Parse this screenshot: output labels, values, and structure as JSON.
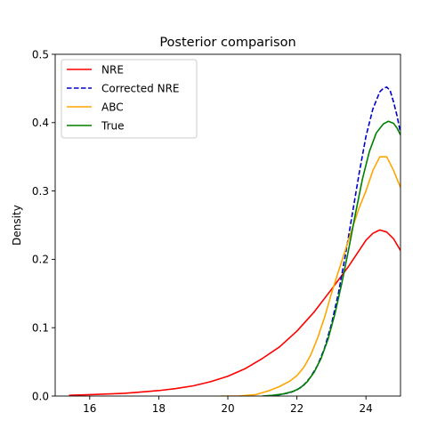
{
  "chart_data": {
    "type": "line",
    "title": "Posterior comparison",
    "xlabel": "",
    "ylabel": "Density",
    "xlim": [
      15.0,
      25.0
    ],
    "ylim": [
      0.0,
      0.5
    ],
    "xticks": [
      16,
      18,
      20,
      22,
      24
    ],
    "yticks": [
      0.0,
      0.1,
      0.2,
      0.3,
      0.4,
      0.5
    ],
    "grid": false,
    "legend_position": "top-left",
    "series": [
      {
        "name": "NRE",
        "color": "#ff0000",
        "style": "solid",
        "x": [
          15.4,
          16.0,
          16.5,
          17.0,
          17.5,
          18.0,
          18.5,
          19.0,
          19.5,
          20.0,
          20.5,
          21.0,
          21.5,
          22.0,
          22.5,
          23.0,
          23.5,
          24.0,
          24.2,
          24.4,
          24.6,
          24.8,
          25.0
        ],
        "y": [
          0.001,
          0.002,
          0.003,
          0.004,
          0.006,
          0.008,
          0.011,
          0.015,
          0.021,
          0.029,
          0.04,
          0.055,
          0.072,
          0.095,
          0.123,
          0.156,
          0.19,
          0.228,
          0.238,
          0.243,
          0.24,
          0.23,
          0.213
        ]
      },
      {
        "name": "Corrected NRE",
        "color": "#0000cc",
        "style": "dashed",
        "x": [
          21.2,
          21.5,
          21.8,
          22.0,
          22.2,
          22.4,
          22.6,
          22.8,
          23.0,
          23.2,
          23.4,
          23.6,
          23.8,
          24.0,
          24.2,
          24.4,
          24.5,
          24.6,
          24.7,
          24.8,
          24.9,
          25.0
        ],
        "y": [
          0.0,
          0.002,
          0.005,
          0.009,
          0.016,
          0.028,
          0.045,
          0.07,
          0.105,
          0.15,
          0.205,
          0.265,
          0.325,
          0.38,
          0.42,
          0.445,
          0.45,
          0.452,
          0.447,
          0.43,
          0.41,
          0.385
        ]
      },
      {
        "name": "ABC",
        "color": "#ffa500",
        "style": "solid",
        "x": [
          19.8,
          20.3,
          20.8,
          21.2,
          21.5,
          21.8,
          22.0,
          22.2,
          22.4,
          22.6,
          22.8,
          23.0,
          23.2,
          23.4,
          23.6,
          23.8,
          24.0,
          24.2,
          24.4,
          24.6,
          24.8,
          25.0
        ],
        "y": [
          0.0,
          0.0,
          0.002,
          0.008,
          0.014,
          0.022,
          0.03,
          0.042,
          0.06,
          0.085,
          0.115,
          0.15,
          0.182,
          0.213,
          0.245,
          0.275,
          0.3,
          0.33,
          0.35,
          0.35,
          0.33,
          0.305
        ]
      },
      {
        "name": "True",
        "color": "#008000",
        "style": "solid",
        "x": [
          21.0,
          21.3,
          21.6,
          21.9,
          22.1,
          22.3,
          22.5,
          22.7,
          22.9,
          23.1,
          23.3,
          23.5,
          23.7,
          23.9,
          24.1,
          24.3,
          24.5,
          24.65,
          24.8,
          24.9,
          25.0
        ],
        "y": [
          0.0,
          0.001,
          0.003,
          0.007,
          0.012,
          0.021,
          0.035,
          0.055,
          0.083,
          0.12,
          0.165,
          0.215,
          0.268,
          0.318,
          0.358,
          0.385,
          0.398,
          0.402,
          0.399,
          0.392,
          0.382
        ]
      }
    ]
  }
}
